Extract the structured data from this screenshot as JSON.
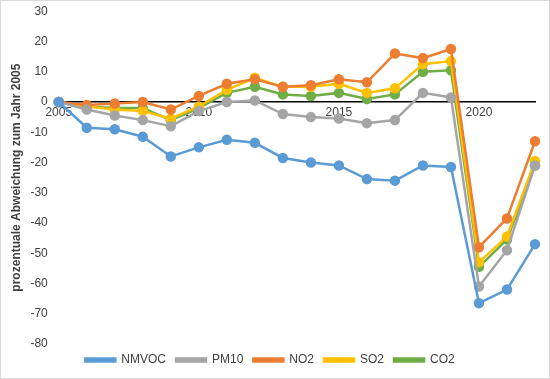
{
  "chart_data": {
    "type": "line",
    "y_label": "prozentuale Abweichung zum Jahr 2005",
    "categories": [
      "2005",
      null,
      null,
      null,
      null,
      "2010",
      null,
      null,
      null,
      null,
      "2015",
      null,
      null,
      null,
      null,
      "2020",
      null,
      null
    ],
    "series": [
      {
        "name": "NMVOC",
        "color": "#5b9bd5",
        "values": [
          0,
          -8.5,
          -9,
          -11.5,
          -18,
          -15,
          -12.5,
          -13.5,
          -18.5,
          -20,
          -21,
          -25.5,
          -26,
          -21,
          -21.5,
          -66.5,
          -62,
          -47
        ]
      },
      {
        "name": "PM10",
        "color": "#a5a5a5",
        "values": [
          0,
          -2.5,
          -4.5,
          -6,
          -8,
          -3,
          0,
          0.5,
          -4,
          -5,
          -5.5,
          -7,
          -6,
          3,
          1.5,
          -61,
          -49,
          -21
        ]
      },
      {
        "name": "NO2",
        "color": "#ed7d31",
        "values": [
          0,
          -1,
          -0.5,
          0,
          -2.5,
          2,
          6,
          7.5,
          5,
          5.5,
          7.5,
          6.5,
          16,
          14.5,
          17.5,
          -48,
          -38.5,
          -13
        ]
      },
      {
        "name": "SO2",
        "color": "#ffc000",
        "values": [
          0,
          -1.5,
          -2.5,
          -3,
          -5.5,
          -1.5,
          4,
          8,
          5,
          5,
          6,
          3,
          4.5,
          12.5,
          13.5,
          -53,
          -44.5,
          -19.5
        ]
      },
      {
        "name": "CO2",
        "color": "#70ad47",
        "values": [
          0,
          -1.5,
          -2,
          -2,
          -6,
          -2,
          3,
          5,
          2.5,
          2,
          3,
          1,
          2.5,
          10,
          10.5,
          -54.5,
          -45.5,
          -21
        ]
      }
    ],
    "ylim": [
      -80,
      30
    ],
    "yticks": [
      -80,
      -70,
      -60,
      -50,
      -40,
      -30,
      -20,
      -10,
      0,
      10,
      20,
      30
    ],
    "grid": false,
    "legend": "bottom",
    "marker": "circle"
  }
}
